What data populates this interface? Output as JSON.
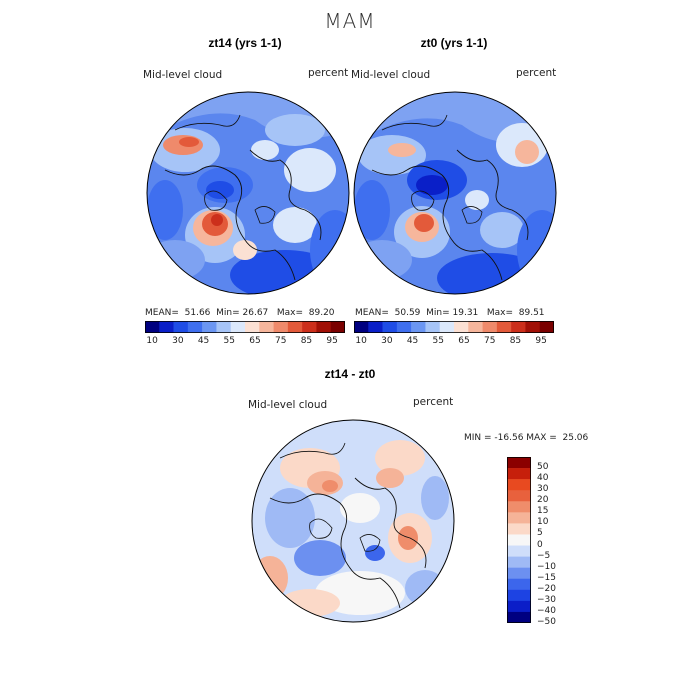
{
  "title": "MAM",
  "colors": {
    "abs_scale": [
      "#000080",
      "#0a1fc8",
      "#1f4de6",
      "#3f6fef",
      "#6b96f2",
      "#a6c4f7",
      "#dbe8fb",
      "#fbe0d3",
      "#f6b69c",
      "#ef8a6b",
      "#e35a3a",
      "#cc2f1b",
      "#a11006",
      "#7a0000"
    ],
    "diff_scale": [
      "#000080",
      "#0b1ec8",
      "#1d43e3",
      "#3c66ec",
      "#6c90f0",
      "#9fbaf5",
      "#cfdefa",
      "#f7f7f7",
      "#fbd9c8",
      "#f5b398",
      "#ef8d6b",
      "#e8613d",
      "#e84a20",
      "#c61f0b",
      "#8b0000"
    ]
  },
  "panels": [
    {
      "title": "zt14 (yrs 1-1)",
      "variable": "Mid-level cloud",
      "units": "percent",
      "stats": {
        "mean_label": "MEAN=",
        "mean": "51.66",
        "min_label": "Min=",
        "min": "26.67",
        "max_label": "Max=",
        "max": "89.20"
      }
    },
    {
      "title": "zt0 (yrs 1-1)",
      "variable": "Mid-level cloud",
      "units": "percent",
      "stats": {
        "mean_label": "MEAN=",
        "mean": "50.59",
        "min_label": "Min=",
        "min": "19.31",
        "max_label": "Max=",
        "max": "89.51"
      }
    }
  ],
  "abs_ticks": [
    "10",
    "30",
    "45",
    "55",
    "65",
    "75",
    "85",
    "95"
  ],
  "diff_panel": {
    "title": "zt14 - zt0",
    "variable": "Mid-level cloud",
    "units": "percent",
    "minmax_text": "MIN = -16.56 MAX =  25.06"
  },
  "diff_ticks": [
    "50",
    "40",
    "30",
    "20",
    "15",
    "10",
    "5",
    "0",
    "−5",
    "−10",
    "−15",
    "−20",
    "−30",
    "−40",
    "−50"
  ]
}
